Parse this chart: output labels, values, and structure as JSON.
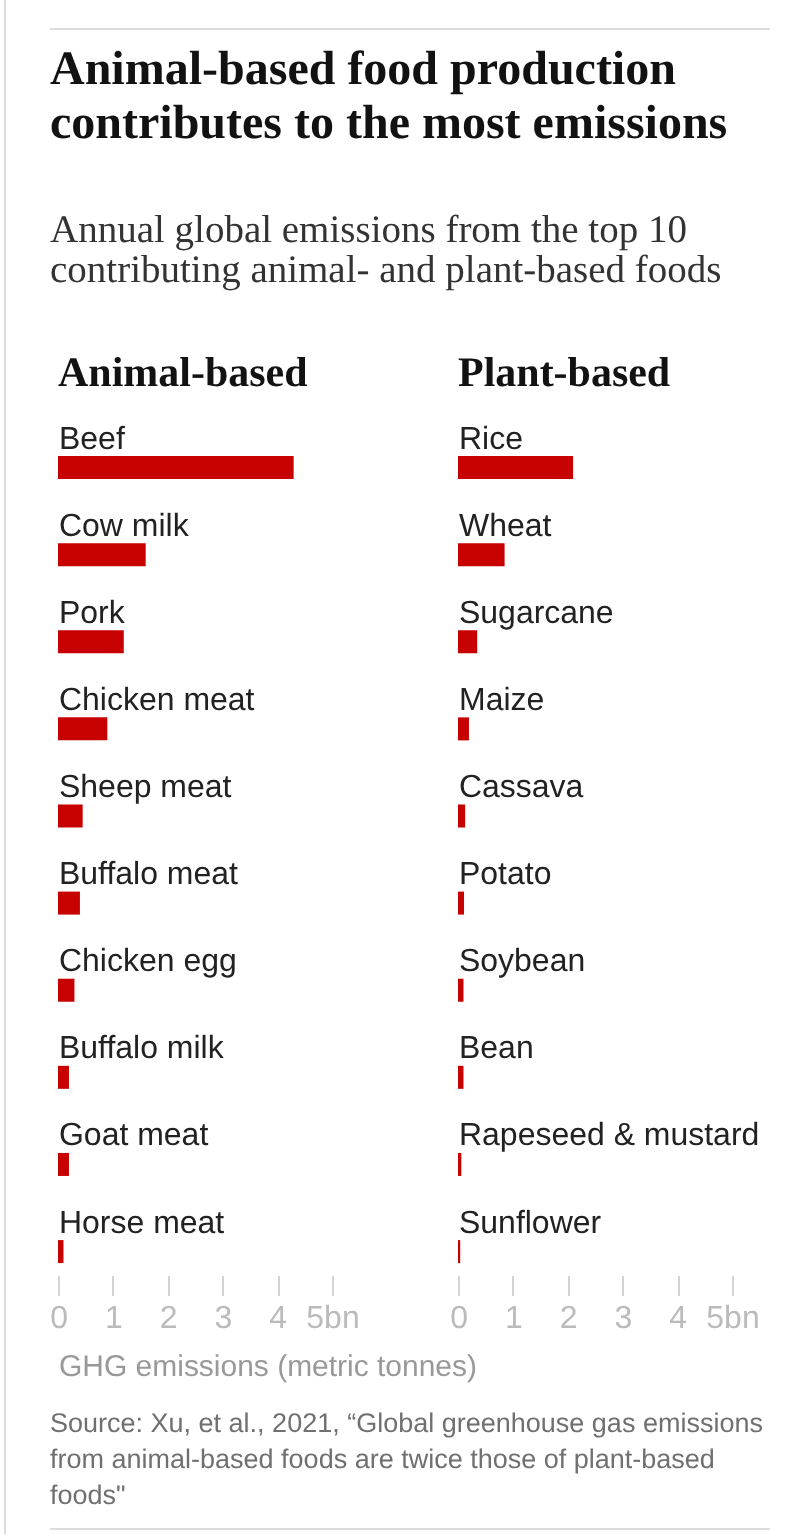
{
  "chart_data": [
    {
      "type": "other",
      "title": "Animal-based food production contributes to the most emissions",
      "subtitle": "Annual global emissions from the top 10 contributing animal- and plant-based foods"
    },
    {
      "type": "bar",
      "orientation": "horizontal",
      "title": "Animal-based",
      "categories": [
        "Beef",
        "Cow milk",
        "Pork",
        "Chicken meat",
        "Sheep meat",
        "Buffalo meat",
        "Chicken egg",
        "Buffalo milk",
        "Goat meat",
        "Horse meat"
      ],
      "values": [
        4.3,
        1.6,
        1.2,
        0.9,
        0.45,
        0.4,
        0.3,
        0.2,
        0.2,
        0.1
      ],
      "color": "#c70000",
      "xlim": [
        0,
        5
      ],
      "xticks": [
        0,
        1,
        2,
        3,
        4,
        {
          "value": 5,
          "label": "5bn"
        }
      ],
      "xlabel": "GHG emissions (metric tonnes)",
      "annotations": [
        "Source: Xu, et al., 2021, “Global greenhouse gas emissions from animal-based foods are twice those of plant-based foods\""
      ]
    },
    {
      "type": "bar",
      "orientation": "horizontal",
      "title": "Plant-based",
      "categories": [
        "Rice",
        "Wheat",
        "Sugarcane",
        "Maize",
        "Cassava",
        "Potato",
        "Soybean",
        "Bean",
        "Rapeseed & mustard",
        "Sunflower"
      ],
      "values": [
        2.1,
        0.85,
        0.35,
        0.2,
        0.13,
        0.11,
        0.1,
        0.1,
        0.06,
        0.04
      ],
      "color": "#c70000",
      "xlim": [
        0,
        5
      ],
      "xticks": [
        0,
        1,
        2,
        3,
        4,
        {
          "value": 5,
          "label": "5bn"
        }
      ]
    }
  ]
}
